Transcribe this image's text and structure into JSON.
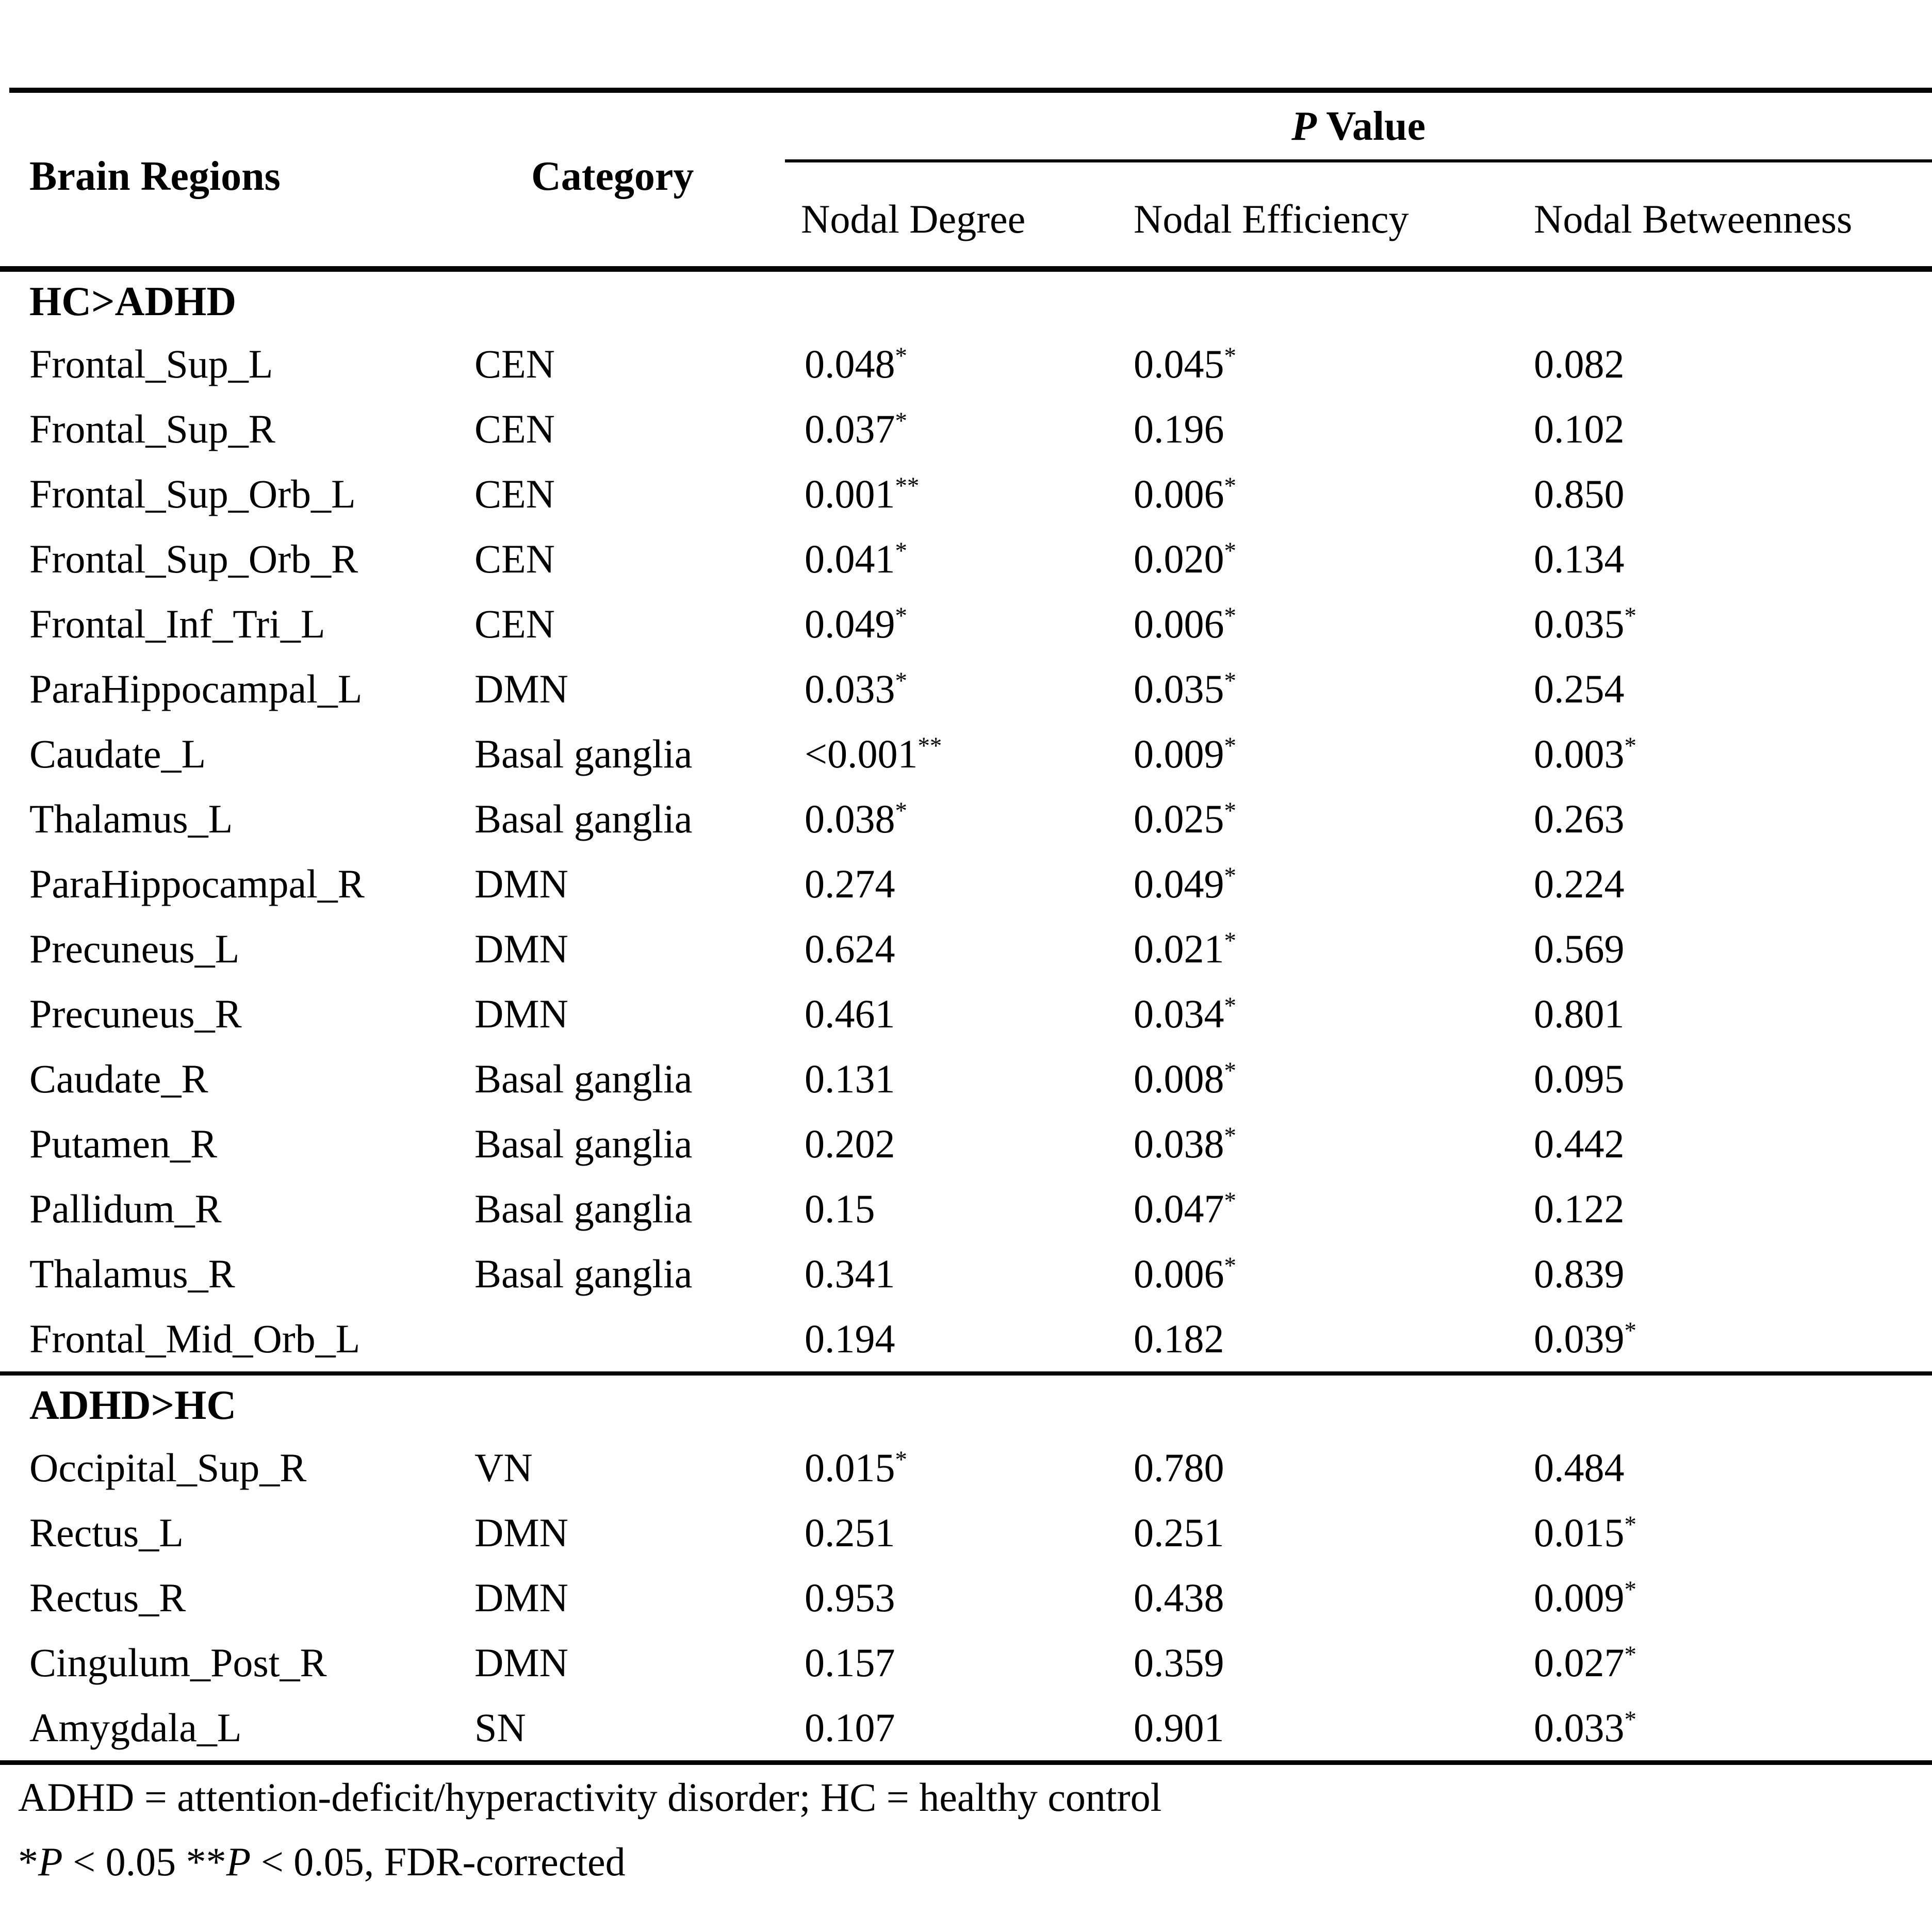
{
  "header": {
    "brain_regions": "Brain Regions",
    "category": "Category",
    "p_value_italic": "P",
    "p_value_rest": " Value",
    "subcolumns": [
      "Nodal Degree",
      "Nodal Efficiency",
      "Nodal Betweenness"
    ]
  },
  "sections": [
    {
      "title": "HC>ADHD",
      "rows": [
        {
          "region": "Frontal_Sup_L",
          "category": "CEN",
          "values": [
            {
              "v": "0.048",
              "sup": "*"
            },
            {
              "v": "0.045",
              "sup": "*"
            },
            {
              "v": "0.082",
              "sup": ""
            }
          ]
        },
        {
          "region": "Frontal_Sup_R",
          "category": "CEN",
          "values": [
            {
              "v": "0.037",
              "sup": "*"
            },
            {
              "v": "0.196",
              "sup": ""
            },
            {
              "v": "0.102",
              "sup": ""
            }
          ]
        },
        {
          "region": "Frontal_Sup_Orb_L",
          "category": "CEN",
          "values": [
            {
              "v": "0.001",
              "sup": "**"
            },
            {
              "v": "0.006",
              "sup": "*"
            },
            {
              "v": "0.850",
              "sup": ""
            }
          ]
        },
        {
          "region": "Frontal_Sup_Orb_R",
          "category": "CEN",
          "values": [
            {
              "v": "0.041",
              "sup": "*"
            },
            {
              "v": "0.020",
              "sup": "*"
            },
            {
              "v": "0.134",
              "sup": ""
            }
          ]
        },
        {
          "region": "Frontal_Inf_Tri_L",
          "category": "CEN",
          "values": [
            {
              "v": "0.049",
              "sup": "*"
            },
            {
              "v": "0.006",
              "sup": "*"
            },
            {
              "v": "0.035",
              "sup": "*"
            }
          ]
        },
        {
          "region": "ParaHippocampal_L",
          "category": "DMN",
          "values": [
            {
              "v": "0.033",
              "sup": "*"
            },
            {
              "v": "0.035",
              "sup": "*"
            },
            {
              "v": "0.254",
              "sup": ""
            }
          ]
        },
        {
          "region": "Caudate_L",
          "category": "Basal ganglia",
          "values": [
            {
              "v": "<0.001",
              "sup": "**"
            },
            {
              "v": "0.009",
              "sup": "*"
            },
            {
              "v": "0.003",
              "sup": "*"
            }
          ]
        },
        {
          "region": "Thalamus_L",
          "category": "Basal ganglia",
          "values": [
            {
              "v": "0.038",
              "sup": "*"
            },
            {
              "v": "0.025",
              "sup": "*"
            },
            {
              "v": "0.263",
              "sup": ""
            }
          ]
        },
        {
          "region": "ParaHippocampal_R",
          "category": "DMN",
          "values": [
            {
              "v": "0.274",
              "sup": ""
            },
            {
              "v": "0.049",
              "sup": "*"
            },
            {
              "v": "0.224",
              "sup": ""
            }
          ]
        },
        {
          "region": "Precuneus_L",
          "category": "DMN",
          "values": [
            {
              "v": "0.624",
              "sup": ""
            },
            {
              "v": "0.021",
              "sup": "*"
            },
            {
              "v": "0.569",
              "sup": ""
            }
          ]
        },
        {
          "region": "Precuneus_R",
          "category": "DMN",
          "values": [
            {
              "v": "0.461",
              "sup": ""
            },
            {
              "v": "0.034",
              "sup": "*"
            },
            {
              "v": "0.801",
              "sup": ""
            }
          ]
        },
        {
          "region": "Caudate_R",
          "category": "Basal ganglia",
          "values": [
            {
              "v": "0.131",
              "sup": ""
            },
            {
              "v": "0.008",
              "sup": "*"
            },
            {
              "v": "0.095",
              "sup": ""
            }
          ]
        },
        {
          "region": "Putamen_R",
          "category": "Basal ganglia",
          "values": [
            {
              "v": "0.202",
              "sup": ""
            },
            {
              "v": "0.038",
              "sup": "*"
            },
            {
              "v": "0.442",
              "sup": ""
            }
          ]
        },
        {
          "region": "Pallidum_R",
          "category": "Basal ganglia",
          "values": [
            {
              "v": "0.15",
              "sup": ""
            },
            {
              "v": "0.047",
              "sup": "*"
            },
            {
              "v": "0.122",
              "sup": ""
            }
          ]
        },
        {
          "region": "Thalamus_R",
          "category": "Basal ganglia",
          "values": [
            {
              "v": "0.341",
              "sup": ""
            },
            {
              "v": "0.006",
              "sup": "*"
            },
            {
              "v": "0.839",
              "sup": ""
            }
          ]
        },
        {
          "region": "Frontal_Mid_Orb_L",
          "category": "",
          "values": [
            {
              "v": "0.194",
              "sup": ""
            },
            {
              "v": "0.182",
              "sup": ""
            },
            {
              "v": "0.039",
              "sup": "*"
            }
          ]
        }
      ]
    },
    {
      "title": "ADHD>HC",
      "rows": [
        {
          "region": "Occipital_Sup_R",
          "category": "VN",
          "values": [
            {
              "v": "0.015",
              "sup": "*"
            },
            {
              "v": "0.780",
              "sup": ""
            },
            {
              "v": "0.484",
              "sup": ""
            }
          ]
        },
        {
          "region": "Rectus_L",
          "category": "DMN",
          "values": [
            {
              "v": "0.251",
              "sup": ""
            },
            {
              "v": "0.251",
              "sup": ""
            },
            {
              "v": "0.015",
              "sup": "*"
            }
          ]
        },
        {
          "region": "Rectus_R",
          "category": "DMN",
          "values": [
            {
              "v": "0.953",
              "sup": ""
            },
            {
              "v": "0.438",
              "sup": ""
            },
            {
              "v": "0.009",
              "sup": "*"
            }
          ]
        },
        {
          "region": "Cingulum_Post_R",
          "category": "DMN",
          "values": [
            {
              "v": "0.157",
              "sup": ""
            },
            {
              "v": "0.359",
              "sup": ""
            },
            {
              "v": "0.027",
              "sup": "*"
            }
          ]
        },
        {
          "region": "Amygdala_L",
          "category": "SN",
          "values": [
            {
              "v": "0.107",
              "sup": ""
            },
            {
              "v": "0.901",
              "sup": ""
            },
            {
              "v": "0.033",
              "sup": "*"
            }
          ]
        }
      ]
    }
  ],
  "footnotes": {
    "line1": "ADHD = attention-deficit/hyperactivity disorder; HC = healthy control",
    "line2": {
      "s1": "*",
      "p1": "P",
      "s2": " < 0.05 **",
      "p2": "P",
      "s3": " < 0.05, FDR-corrected"
    }
  }
}
